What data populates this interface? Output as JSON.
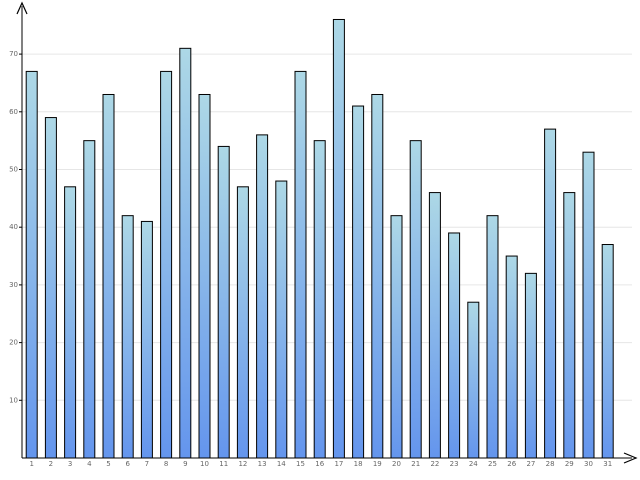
{
  "chart_data": {
    "type": "bar",
    "categories": [
      "1",
      "2",
      "3",
      "4",
      "5",
      "6",
      "7",
      "8",
      "9",
      "10",
      "11",
      "12",
      "13",
      "14",
      "15",
      "16",
      "17",
      "18",
      "19",
      "20",
      "21",
      "22",
      "23",
      "24",
      "25",
      "26",
      "27",
      "28",
      "29",
      "30",
      "31"
    ],
    "values": [
      67,
      59,
      47,
      55,
      63,
      42,
      41,
      67,
      71,
      63,
      54,
      47,
      56,
      48,
      67,
      55,
      76,
      61,
      63,
      42,
      55,
      46,
      39,
      27,
      42,
      35,
      32,
      57,
      46,
      53,
      37
    ],
    "y_ticks": [
      "10",
      "20",
      "30",
      "40",
      "50",
      "60",
      "70"
    ],
    "ylim": [
      0,
      79
    ],
    "grid": true,
    "colors": {
      "bar_top": "#add8e6",
      "bar_bottom": "#6495ed",
      "bar_outline": "#000000",
      "grid": "#e6e6e6",
      "axis": "#000000"
    }
  }
}
